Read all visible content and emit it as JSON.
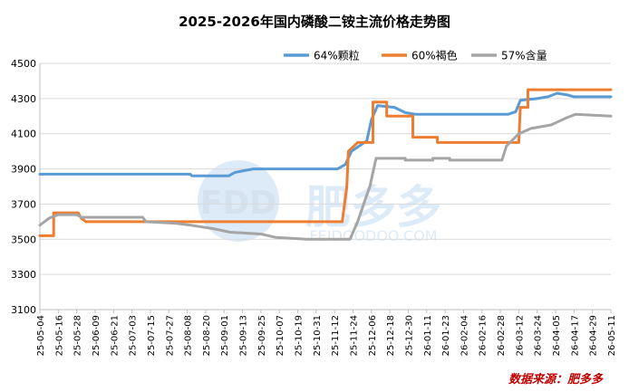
{
  "chart_data": {
    "type": "line",
    "title": "2025-2026年国内磷酸二铵主流价格走势图",
    "source": "数据来源：肥多多",
    "watermark": {
      "logo_text": "FDD",
      "brand": "肥多多",
      "url": "FEIDOODOO.COM"
    },
    "ylim": [
      3100,
      4500
    ],
    "yticks": [
      3100,
      3300,
      3500,
      3700,
      3900,
      4100,
      4300,
      4500
    ],
    "xlim": [
      "2025-05-04",
      "2026-05-11"
    ],
    "xticks": [
      "25-05-04",
      "25-05-16",
      "25-05-28",
      "25-06-09",
      "25-06-21",
      "25-07-03",
      "25-07-15",
      "25-07-27",
      "25-08-08",
      "25-08-20",
      "25-09-01",
      "25-09-13",
      "25-09-25",
      "25-10-07",
      "25-10-19",
      "25-10-31",
      "25-11-12",
      "25-11-24",
      "25-12-06",
      "25-12-18",
      "25-12-30",
      "26-01-11",
      "26-01-23",
      "26-02-04",
      "26-02-16",
      "26-02-28",
      "26-03-12",
      "26-03-24",
      "26-04-05",
      "26-04-17",
      "26-04-29",
      "26-05-11"
    ],
    "legend_position": "top-right",
    "series": [
      {
        "name": "64%颗粒",
        "color": "#5b9bd5",
        "points": [
          [
            "2025-05-04",
            3870
          ],
          [
            "2025-08-10",
            3870
          ],
          [
            "2025-08-11",
            3860
          ],
          [
            "2025-09-04",
            3860
          ],
          [
            "2025-09-08",
            3880
          ],
          [
            "2025-09-14",
            3890
          ],
          [
            "2025-09-20",
            3900
          ],
          [
            "2025-11-14",
            3900
          ],
          [
            "2025-11-19",
            3925
          ],
          [
            "2025-11-23",
            4000
          ],
          [
            "2025-12-03",
            4060
          ],
          [
            "2025-12-06",
            4180
          ],
          [
            "2025-12-10",
            4260
          ],
          [
            "2025-12-21",
            4250
          ],
          [
            "2025-12-28",
            4220
          ],
          [
            "2026-01-04",
            4210
          ],
          [
            "2026-03-05",
            4210
          ],
          [
            "2026-03-10",
            4225
          ],
          [
            "2026-03-13",
            4290
          ],
          [
            "2026-03-24",
            4300
          ],
          [
            "2026-03-31",
            4310
          ],
          [
            "2026-04-06",
            4330
          ],
          [
            "2026-04-13",
            4320
          ],
          [
            "2026-04-17",
            4310
          ],
          [
            "2026-05-11",
            4310
          ]
        ]
      },
      {
        "name": "60%褐色",
        "color": "#ed7d31",
        "points": [
          [
            "2025-05-04",
            3520
          ],
          [
            "2025-05-13",
            3520
          ],
          [
            "2025-05-13",
            3650
          ],
          [
            "2025-05-29",
            3650
          ],
          [
            "2025-05-31",
            3620
          ],
          [
            "2025-06-03",
            3600
          ],
          [
            "2025-11-17",
            3600
          ],
          [
            "2025-11-20",
            3800
          ],
          [
            "2025-11-21",
            4000
          ],
          [
            "2025-11-27",
            4050
          ],
          [
            "2025-12-07",
            4050
          ],
          [
            "2025-12-07",
            4280
          ],
          [
            "2025-12-16",
            4280
          ],
          [
            "2025-12-16",
            4200
          ],
          [
            "2026-01-02",
            4200
          ],
          [
            "2026-01-02",
            4080
          ],
          [
            "2026-01-18",
            4080
          ],
          [
            "2026-01-18",
            4050
          ],
          [
            "2026-03-12",
            4050
          ],
          [
            "2026-03-13",
            4250
          ],
          [
            "2026-03-18",
            4250
          ],
          [
            "2026-03-18",
            4350
          ],
          [
            "2026-05-11",
            4350
          ]
        ]
      },
      {
        "name": "57%含量",
        "color": "#a5a5a5",
        "points": [
          [
            "2025-05-04",
            3580
          ],
          [
            "2025-05-07",
            3600
          ],
          [
            "2025-05-10",
            3620
          ],
          [
            "2025-05-16",
            3640
          ],
          [
            "2025-05-28",
            3640
          ],
          [
            "2025-05-31",
            3625
          ],
          [
            "2025-07-10",
            3625
          ],
          [
            "2025-07-12",
            3600
          ],
          [
            "2025-08-01",
            3590
          ],
          [
            "2025-08-10",
            3580
          ],
          [
            "2025-08-25",
            3560
          ],
          [
            "2025-09-05",
            3540
          ],
          [
            "2025-09-25",
            3530
          ],
          [
            "2025-10-05",
            3510
          ],
          [
            "2025-10-25",
            3500
          ],
          [
            "2025-11-01",
            3500
          ],
          [
            "2025-11-22",
            3500
          ],
          [
            "2025-11-27",
            3600
          ],
          [
            "2025-12-01",
            3700
          ],
          [
            "2025-12-05",
            3800
          ],
          [
            "2025-12-09",
            3960
          ],
          [
            "2025-12-28",
            3960
          ],
          [
            "2025-12-28",
            3950
          ],
          [
            "2026-01-15",
            3950
          ],
          [
            "2026-01-15",
            3960
          ],
          [
            "2026-01-26",
            3960
          ],
          [
            "2026-01-26",
            3950
          ],
          [
            "2026-03-01",
            3950
          ],
          [
            "2026-03-04",
            4030
          ],
          [
            "2026-03-12",
            4100
          ],
          [
            "2026-03-20",
            4130
          ],
          [
            "2026-04-02",
            4150
          ],
          [
            "2026-04-12",
            4190
          ],
          [
            "2026-04-18",
            4210
          ],
          [
            "2026-05-11",
            4200
          ]
        ]
      }
    ]
  }
}
